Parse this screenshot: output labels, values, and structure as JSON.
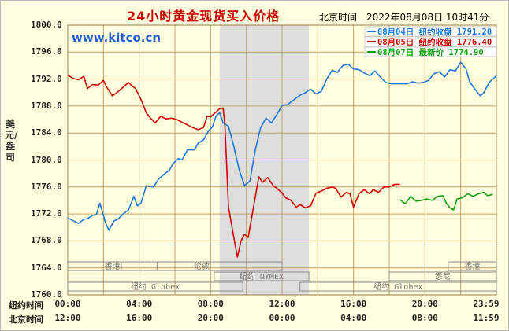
{
  "header": {
    "title": "24小时黄金现货买入价格",
    "timestamp": "北京时间　2022年08月08日 10时41分",
    "brand": "www.kitco.cn"
  },
  "colors": {
    "background": "#ffffdf",
    "grid": "#c8a064",
    "shade": "#dedede",
    "series_aug04": "#1e78d8",
    "series_aug05": "#d40000",
    "series_aug07": "#10a010"
  },
  "chart_data": {
    "type": "line",
    "title": "24小时黄金现货买入价格",
    "ylabel": "美元/盎司",
    "ylim": [
      1760,
      1800
    ],
    "yticks": [
      "1800.0",
      "1796.0",
      "1792.0",
      "1788.0",
      "1784.0",
      "1780.0",
      "1776.0",
      "1772.0",
      "1768.0",
      "1764.0",
      "1760.0"
    ],
    "xlim": [
      0,
      24
    ],
    "x_unit": "hours after 00:00 New York time",
    "grid": true,
    "shaded_hours": [
      8.5,
      13.5
    ],
    "x_rows": [
      {
        "label": "纽约时间",
        "ticks": [
          "00:00",
          "04:00",
          "08:00",
          "12:00",
          "16:00",
          "20:00",
          "23:59"
        ]
      },
      {
        "label": "北京时间",
        "ticks": [
          "12:00",
          "16:00",
          "20:00",
          "00:00",
          "04:00",
          "08:00",
          "11:59"
        ]
      }
    ],
    "sessions": [
      {
        "name": "香港",
        "start": 0,
        "end": 5
      },
      {
        "name": "伦敦",
        "start": 3,
        "end": 12
      },
      {
        "name": "纽约 NYMEX",
        "start": 8.2,
        "end": 13.5
      },
      {
        "name": "纽约 Globex",
        "start": 0,
        "end": 9.8
      },
      {
        "name": "纽约 Globex",
        "start": 13,
        "end": 24
      },
      {
        "name": "悉尼",
        "start": 18,
        "end": 24
      },
      {
        "name": "香港",
        "start": 21.3,
        "end": 24
      }
    ],
    "legend": {
      "placement": "top-right",
      "entries": [
        {
          "date": "08月04日",
          "label": "纽约收盘",
          "value": "1791.20",
          "color": "#1e78d8"
        },
        {
          "date": "08月05日",
          "label": "纽约收盘",
          "value": "1776.40",
          "color": "#d40000"
        },
        {
          "date": "08月07日",
          "label": "最新价",
          "value": "1774.90",
          "color": "#10a010"
        }
      ]
    },
    "series": [
      {
        "name": "08月04日",
        "color": "#1e78d8",
        "points": [
          [
            0,
            1771.4
          ],
          [
            0.3,
            1771.0
          ],
          [
            0.6,
            1770.6
          ],
          [
            0.9,
            1771.2
          ],
          [
            1.1,
            1771.3
          ],
          [
            1.4,
            1771.8
          ],
          [
            1.6,
            1771.9
          ],
          [
            1.8,
            1773.6
          ],
          [
            2.1,
            1770.8
          ],
          [
            2.3,
            1769.6
          ],
          [
            2.6,
            1771.0
          ],
          [
            2.8,
            1771.2
          ],
          [
            3.1,
            1772.0
          ],
          [
            3.4,
            1772.6
          ],
          [
            3.7,
            1774.6
          ],
          [
            3.9,
            1773.2
          ],
          [
            4.1,
            1773.6
          ],
          [
            4.4,
            1776.2
          ],
          [
            4.8,
            1776.0
          ],
          [
            5.1,
            1777.2
          ],
          [
            5.4,
            1777.9
          ],
          [
            5.7,
            1778.5
          ],
          [
            5.9,
            1779.5
          ],
          [
            6.2,
            1780.2
          ],
          [
            6.4,
            1780.0
          ],
          [
            6.7,
            1781.5
          ],
          [
            7.1,
            1781.5
          ],
          [
            7.3,
            1782.5
          ],
          [
            7.6,
            1783.0
          ],
          [
            7.9,
            1784.4
          ],
          [
            8.1,
            1784.9
          ],
          [
            8.3,
            1786.5
          ],
          [
            8.5,
            1787.0
          ],
          [
            8.7,
            1785.5
          ],
          [
            9.0,
            1785.0
          ],
          [
            9.3,
            1782.0
          ],
          [
            9.6,
            1778.5
          ],
          [
            9.9,
            1776.2
          ],
          [
            10.2,
            1776.9
          ],
          [
            10.5,
            1781.5
          ],
          [
            10.8,
            1784.8
          ],
          [
            11.1,
            1786.2
          ],
          [
            11.4,
            1785.5
          ],
          [
            11.7,
            1786.7
          ],
          [
            12.0,
            1788.1
          ],
          [
            12.3,
            1788.2
          ],
          [
            12.7,
            1789.0
          ],
          [
            13.0,
            1789.6
          ],
          [
            13.3,
            1790.0
          ],
          [
            13.6,
            1790.5
          ],
          [
            13.9,
            1789.8
          ],
          [
            14.2,
            1790.2
          ],
          [
            14.5,
            1792.0
          ],
          [
            14.8,
            1793.3
          ],
          [
            15.1,
            1793.0
          ],
          [
            15.4,
            1794.0
          ],
          [
            15.7,
            1794.2
          ],
          [
            16.0,
            1793.5
          ],
          [
            16.3,
            1793.4
          ],
          [
            16.6,
            1792.9
          ],
          [
            16.9,
            1792.5
          ],
          [
            17.2,
            1793.2
          ],
          [
            17.5,
            1792.3
          ],
          [
            17.8,
            1791.5
          ],
          [
            18.1,
            1791.3
          ],
          [
            18.5,
            1791.3
          ],
          [
            18.8,
            1791.3
          ],
          [
            19.0,
            1791.3
          ],
          [
            19.3,
            1791.6
          ],
          [
            19.6,
            1791.4
          ],
          [
            19.9,
            1791.5
          ],
          [
            20.2,
            1791.8
          ],
          [
            20.5,
            1792.8
          ],
          [
            20.8,
            1793.1
          ],
          [
            21.1,
            1792.3
          ],
          [
            21.4,
            1793.4
          ],
          [
            21.7,
            1793.2
          ],
          [
            22.0,
            1794.5
          ],
          [
            22.3,
            1793.5
          ],
          [
            22.5,
            1791.6
          ],
          [
            22.8,
            1790.5
          ],
          [
            23.1,
            1789.5
          ],
          [
            23.3,
            1790.0
          ],
          [
            23.6,
            1791.5
          ],
          [
            23.8,
            1792.0
          ],
          [
            24.0,
            1792.5
          ]
        ]
      },
      {
        "name": "08月05日",
        "color": "#d40000",
        "points": [
          [
            0,
            1792.6
          ],
          [
            0.3,
            1792.1
          ],
          [
            0.6,
            1791.9
          ],
          [
            0.9,
            1792.4
          ],
          [
            1.1,
            1790.6
          ],
          [
            1.4,
            1791.2
          ],
          [
            1.7,
            1791.1
          ],
          [
            2.0,
            1791.8
          ],
          [
            2.2,
            1790.7
          ],
          [
            2.5,
            1789.5
          ],
          [
            2.8,
            1790.1
          ],
          [
            3.1,
            1790.8
          ],
          [
            3.4,
            1791.5
          ],
          [
            3.6,
            1791.0
          ],
          [
            3.8,
            1790.6
          ],
          [
            4.1,
            1789.0
          ],
          [
            4.4,
            1787.0
          ],
          [
            4.6,
            1786.3
          ],
          [
            4.9,
            1785.5
          ],
          [
            5.2,
            1786.5
          ],
          [
            5.5,
            1786.1
          ],
          [
            5.8,
            1786.2
          ],
          [
            6.1,
            1786.0
          ],
          [
            6.4,
            1785.6
          ],
          [
            6.7,
            1785.2
          ],
          [
            7.0,
            1784.8
          ],
          [
            7.3,
            1784.5
          ],
          [
            7.6,
            1784.8
          ],
          [
            7.8,
            1786.5
          ],
          [
            8.0,
            1786.4
          ],
          [
            8.3,
            1787.1
          ],
          [
            8.5,
            1787.6
          ],
          [
            8.7,
            1787.7
          ],
          [
            8.8,
            1785.0
          ],
          [
            9.0,
            1773.0
          ],
          [
            9.2,
            1770.0
          ],
          [
            9.4,
            1767.0
          ],
          [
            9.5,
            1765.6
          ],
          [
            9.7,
            1768.0
          ],
          [
            9.9,
            1769.0
          ],
          [
            10.1,
            1768.5
          ],
          [
            10.3,
            1771.5
          ],
          [
            10.5,
            1774.5
          ],
          [
            10.7,
            1777.5
          ],
          [
            10.9,
            1776.7
          ],
          [
            11.2,
            1777.4
          ],
          [
            11.5,
            1776.2
          ],
          [
            11.7,
            1775.8
          ],
          [
            12.0,
            1775.1
          ],
          [
            12.2,
            1774.4
          ],
          [
            12.5,
            1774.0
          ],
          [
            12.8,
            1773.0
          ],
          [
            13.0,
            1773.4
          ],
          [
            13.3,
            1772.9
          ],
          [
            13.6,
            1773.2
          ],
          [
            13.9,
            1775.1
          ],
          [
            14.2,
            1775.4
          ],
          [
            14.5,
            1775.8
          ],
          [
            14.8,
            1776.0
          ],
          [
            15.0,
            1775.8
          ],
          [
            15.3,
            1774.5
          ],
          [
            15.6,
            1775.2
          ],
          [
            15.8,
            1775.0
          ],
          [
            16.0,
            1773.0
          ],
          [
            16.3,
            1775.0
          ],
          [
            16.6,
            1775.6
          ],
          [
            16.9,
            1775.0
          ],
          [
            17.1,
            1775.6
          ],
          [
            17.4,
            1775.2
          ],
          [
            17.7,
            1776.0
          ],
          [
            18.0,
            1776.0
          ],
          [
            18.3,
            1776.4
          ],
          [
            18.6,
            1776.4
          ]
        ]
      },
      {
        "name": "08月07日",
        "color": "#10a010",
        "points": [
          [
            18.6,
            1774.1
          ],
          [
            18.9,
            1773.5
          ],
          [
            19.2,
            1774.6
          ],
          [
            19.5,
            1773.9
          ],
          [
            19.8,
            1774.0
          ],
          [
            20.1,
            1774.2
          ],
          [
            20.4,
            1774.0
          ],
          [
            20.7,
            1774.6
          ],
          [
            21.0,
            1774.7
          ],
          [
            21.2,
            1773.6
          ],
          [
            21.4,
            1772.9
          ],
          [
            21.6,
            1772.6
          ],
          [
            21.8,
            1774.2
          ],
          [
            22.1,
            1774.4
          ],
          [
            22.4,
            1775.0
          ],
          [
            22.7,
            1774.6
          ],
          [
            23.0,
            1775.0
          ],
          [
            23.3,
            1775.2
          ],
          [
            23.5,
            1774.7
          ],
          [
            23.8,
            1774.9
          ]
        ]
      }
    ]
  }
}
